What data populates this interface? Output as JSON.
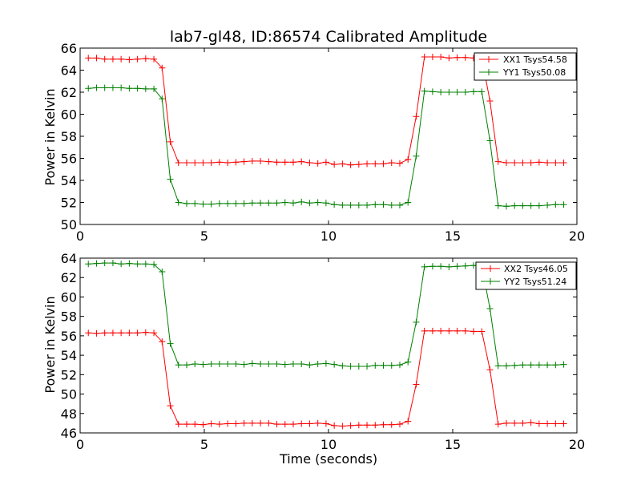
{
  "chart_data": [
    {
      "type": "line",
      "title": "lab7-gl48, ID:86574 Calibrated Amplitude",
      "xlabel": "",
      "ylabel": "Power in Kelvin",
      "xlim": [
        0,
        20
      ],
      "ylim": [
        50,
        66
      ],
      "xticks": [
        0,
        5,
        10,
        15,
        20
      ],
      "yticks": [
        50,
        52,
        54,
        56,
        58,
        60,
        62,
        64,
        66
      ],
      "grid": false,
      "legend_position": "top-right",
      "x": [
        0.33,
        0.66,
        0.99,
        1.32,
        1.65,
        1.98,
        2.31,
        2.64,
        2.97,
        3.3,
        3.63,
        3.96,
        4.29,
        4.62,
        4.95,
        5.28,
        5.61,
        5.94,
        6.27,
        6.6,
        6.93,
        7.26,
        7.59,
        7.92,
        8.25,
        8.58,
        8.91,
        9.24,
        9.57,
        9.9,
        10.23,
        10.56,
        10.89,
        11.22,
        11.55,
        11.88,
        12.21,
        12.54,
        12.87,
        13.2,
        13.53,
        13.86,
        14.19,
        14.52,
        14.85,
        15.18,
        15.51,
        15.84,
        16.17,
        16.5,
        16.83,
        17.16,
        17.49,
        17.82,
        18.15,
        18.48,
        18.81,
        19.14,
        19.47
      ],
      "series": [
        {
          "name": "XX1 Tsys54.58",
          "color": "#ff0000",
          "values": [
            65.1,
            65.1,
            65.0,
            65.0,
            65.0,
            64.95,
            65.0,
            65.05,
            65.0,
            64.2,
            57.5,
            55.6,
            55.6,
            55.6,
            55.6,
            55.6,
            55.65,
            55.6,
            55.65,
            55.7,
            55.75,
            55.75,
            55.7,
            55.65,
            55.65,
            55.65,
            55.7,
            55.6,
            55.55,
            55.65,
            55.45,
            55.5,
            55.4,
            55.45,
            55.5,
            55.5,
            55.5,
            55.6,
            55.55,
            55.9,
            59.8,
            65.2,
            65.2,
            65.2,
            65.1,
            65.15,
            65.15,
            65.1,
            65.1,
            61.2,
            55.7,
            55.6,
            55.6,
            55.6,
            55.6,
            55.65,
            55.6,
            55.6,
            55.6
          ]
        },
        {
          "name": "YY1 Tsys50.08",
          "color": "#008000",
          "values": [
            62.35,
            62.4,
            62.4,
            62.4,
            62.4,
            62.35,
            62.35,
            62.3,
            62.3,
            61.4,
            54.1,
            52.0,
            51.9,
            51.9,
            51.85,
            51.85,
            51.9,
            51.9,
            51.9,
            51.9,
            51.95,
            51.95,
            51.95,
            51.95,
            52.0,
            51.95,
            52.05,
            51.95,
            52.0,
            51.95,
            51.8,
            51.75,
            51.75,
            51.75,
            51.75,
            51.8,
            51.8,
            51.75,
            51.75,
            52.0,
            56.2,
            62.1,
            62.05,
            62.0,
            62.0,
            62.0,
            62.0,
            62.05,
            62.05,
            57.6,
            51.7,
            51.65,
            51.7,
            51.7,
            51.7,
            51.7,
            51.75,
            51.8,
            51.8
          ]
        }
      ]
    },
    {
      "type": "line",
      "title": "",
      "xlabel": "Time (seconds)",
      "ylabel": "Power in Kelvin",
      "xlim": [
        0,
        20
      ],
      "ylim": [
        46,
        64
      ],
      "xticks": [
        0,
        5,
        10,
        15,
        20
      ],
      "yticks": [
        46,
        48,
        50,
        52,
        54,
        56,
        58,
        60,
        62,
        64
      ],
      "grid": false,
      "legend_position": "top-right",
      "x": [
        0.33,
        0.66,
        0.99,
        1.32,
        1.65,
        1.98,
        2.31,
        2.64,
        2.97,
        3.3,
        3.63,
        3.96,
        4.29,
        4.62,
        4.95,
        5.28,
        5.61,
        5.94,
        6.27,
        6.6,
        6.93,
        7.26,
        7.59,
        7.92,
        8.25,
        8.58,
        8.91,
        9.24,
        9.57,
        9.9,
        10.23,
        10.56,
        10.89,
        11.22,
        11.55,
        11.88,
        12.21,
        12.54,
        12.87,
        13.2,
        13.53,
        13.86,
        14.19,
        14.52,
        14.85,
        15.18,
        15.51,
        15.84,
        16.17,
        16.5,
        16.83,
        17.16,
        17.49,
        17.82,
        18.15,
        18.48,
        18.81,
        19.14,
        19.47
      ],
      "series": [
        {
          "name": "XX2 Tsys46.05",
          "color": "#ff0000",
          "values": [
            56.3,
            56.25,
            56.3,
            56.3,
            56.3,
            56.3,
            56.3,
            56.35,
            56.3,
            55.4,
            48.8,
            46.9,
            46.9,
            46.9,
            46.85,
            46.95,
            46.9,
            46.95,
            46.95,
            47.0,
            47.0,
            47.0,
            47.0,
            46.9,
            46.9,
            46.9,
            46.95,
            46.95,
            47.0,
            46.95,
            46.75,
            46.7,
            46.75,
            46.8,
            46.8,
            46.8,
            46.85,
            46.85,
            46.9,
            47.2,
            51.0,
            56.5,
            56.5,
            56.5,
            56.5,
            56.5,
            56.5,
            56.45,
            56.45,
            52.5,
            46.9,
            47.0,
            47.0,
            47.0,
            47.05,
            46.95,
            46.95,
            46.95,
            46.95
          ]
        },
        {
          "name": "YY2 Tsys51.24",
          "color": "#008000",
          "values": [
            63.4,
            63.45,
            63.5,
            63.5,
            63.4,
            63.45,
            63.4,
            63.4,
            63.35,
            62.6,
            55.2,
            53.0,
            53.0,
            53.1,
            53.05,
            53.1,
            53.1,
            53.1,
            53.1,
            53.05,
            53.15,
            53.1,
            53.1,
            53.1,
            53.05,
            53.1,
            53.1,
            53.0,
            53.1,
            53.15,
            53.05,
            52.9,
            52.85,
            52.85,
            52.85,
            52.95,
            52.95,
            52.95,
            53.0,
            53.3,
            57.4,
            63.1,
            63.15,
            63.15,
            63.1,
            63.15,
            63.2,
            63.25,
            63.2,
            58.8,
            52.9,
            52.9,
            52.95,
            53.0,
            53.0,
            53.0,
            53.0,
            53.0,
            53.05
          ]
        }
      ]
    }
  ]
}
